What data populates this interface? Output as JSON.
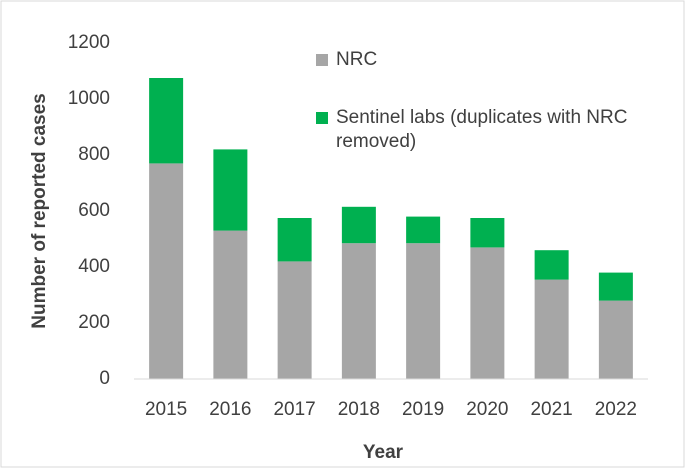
{
  "chart_data": {
    "type": "stacked_bar",
    "x_label": "Year",
    "y_label": "Number of reported cases",
    "categories": [
      "2015",
      "2016",
      "2017",
      "2018",
      "2019",
      "2020",
      "2021",
      "2022"
    ],
    "series": [
      {
        "name": "NRC",
        "color": "#a6a6a6",
        "values": [
          770,
          530,
          420,
          485,
          485,
          470,
          355,
          280
        ]
      },
      {
        "name": "Sentinel labs (duplicates with NRC removed)",
        "color": "#00b050",
        "values": [
          305,
          290,
          155,
          130,
          95,
          105,
          105,
          100
        ]
      }
    ],
    "ylim": [
      0,
      1200
    ],
    "yticks": [
      0,
      200,
      400,
      600,
      800,
      1000,
      1200
    ],
    "grid": false
  }
}
